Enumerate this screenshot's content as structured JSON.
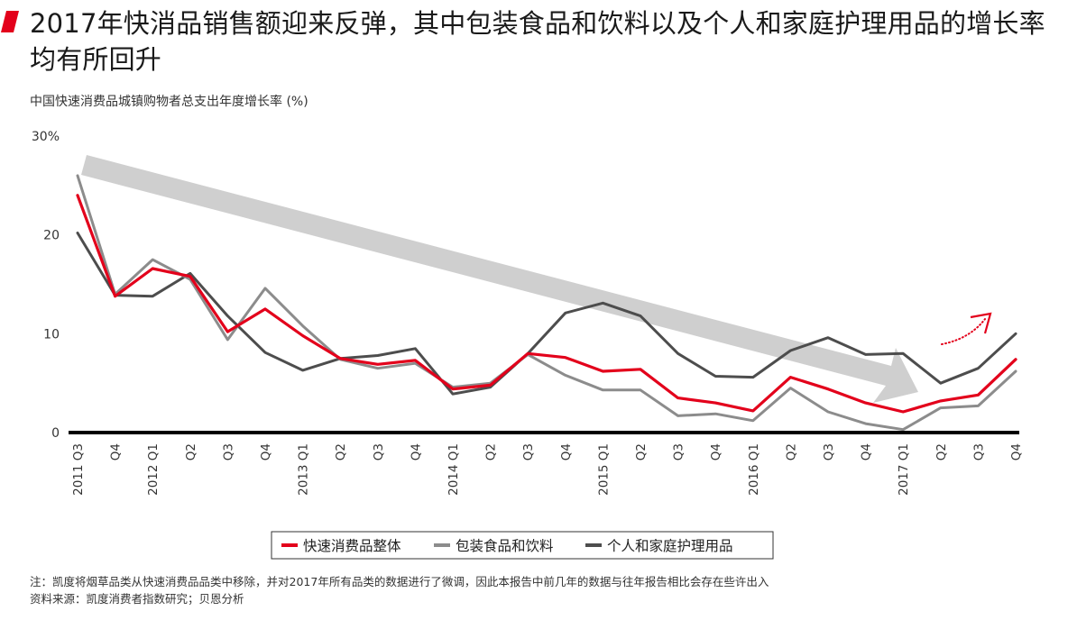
{
  "header": {
    "title": "2017年快消品销售额迎来反弹，其中包装食品和饮料以及个人和家庭护理用品的增长率均有所回升"
  },
  "footer": {
    "note": "注：凯度将烟草品类从快速消费品品类中移除，并对2017年所有品类的数据进行了微调，因此本报告中前几年的数据与往年报告相比会存在些许出入",
    "source": "资料来源：凯度消费者指数研究；贝恩分析"
  },
  "colors": {
    "accent": "#e3001b",
    "packaged_food": "#8c8c8c",
    "personal_care": "#4d4d4d",
    "trend_arrow": "#cfcfcf"
  },
  "chart_data": {
    "type": "line",
    "title": "中国快速消费品城镇购物者总支出年度增长率 (%)",
    "ylim": [
      0,
      30
    ],
    "yticks": [
      0,
      10,
      20,
      30
    ],
    "ytick_labels": [
      "0",
      "10",
      "20",
      "30%"
    ],
    "categories": [
      "Q3",
      "Q4",
      "Q1",
      "Q2",
      "Q3",
      "Q4",
      "Q1",
      "Q2",
      "Q3",
      "Q4",
      "Q1",
      "Q2",
      "Q3",
      "Q4",
      "Q1",
      "Q2",
      "Q3",
      "Q4",
      "Q1",
      "Q2",
      "Q3",
      "Q4",
      "Q1",
      "Q2",
      "Q3",
      "Q4"
    ],
    "year_labels": [
      {
        "index": 0,
        "label": "2011"
      },
      {
        "index": 2,
        "label": "2012"
      },
      {
        "index": 6,
        "label": "2013"
      },
      {
        "index": 10,
        "label": "2014"
      },
      {
        "index": 14,
        "label": "2015"
      },
      {
        "index": 18,
        "label": "2016"
      },
      {
        "index": 22,
        "label": "2017"
      }
    ],
    "series": [
      {
        "name": "快速消费品整体",
        "color": "#e3001b",
        "values": [
          24,
          13.8,
          16.6,
          15.8,
          10.2,
          12.5,
          9.8,
          7.5,
          6.9,
          7.3,
          4.4,
          4.8,
          8.0,
          7.6,
          6.2,
          6.4,
          3.5,
          3.0,
          2.2,
          5.6,
          4.4,
          3.0,
          2.1,
          3.2,
          3.8,
          7.4
        ]
      },
      {
        "name": "包装食品和饮料",
        "color": "#8c8c8c",
        "values": [
          26,
          14.0,
          17.5,
          15.5,
          9.4,
          14.6,
          10.8,
          7.4,
          6.5,
          7.0,
          4.6,
          5.0,
          7.9,
          5.8,
          4.3,
          4.3,
          1.7,
          1.9,
          1.2,
          4.5,
          2.1,
          0.9,
          0.3,
          2.5,
          2.7,
          6.2
        ]
      },
      {
        "name": "个人和家庭护理用品",
        "color": "#4d4d4d",
        "values": [
          20.2,
          13.9,
          13.8,
          16.1,
          11.8,
          8.1,
          6.3,
          7.5,
          7.8,
          8.5,
          3.9,
          4.6,
          8.0,
          12.1,
          13.1,
          11.8,
          8.0,
          5.7,
          5.6,
          8.3,
          9.6,
          7.9,
          8.0,
          5.0,
          6.5,
          10.0
        ]
      }
    ],
    "legend_position": "bottom-center",
    "grid": false
  }
}
